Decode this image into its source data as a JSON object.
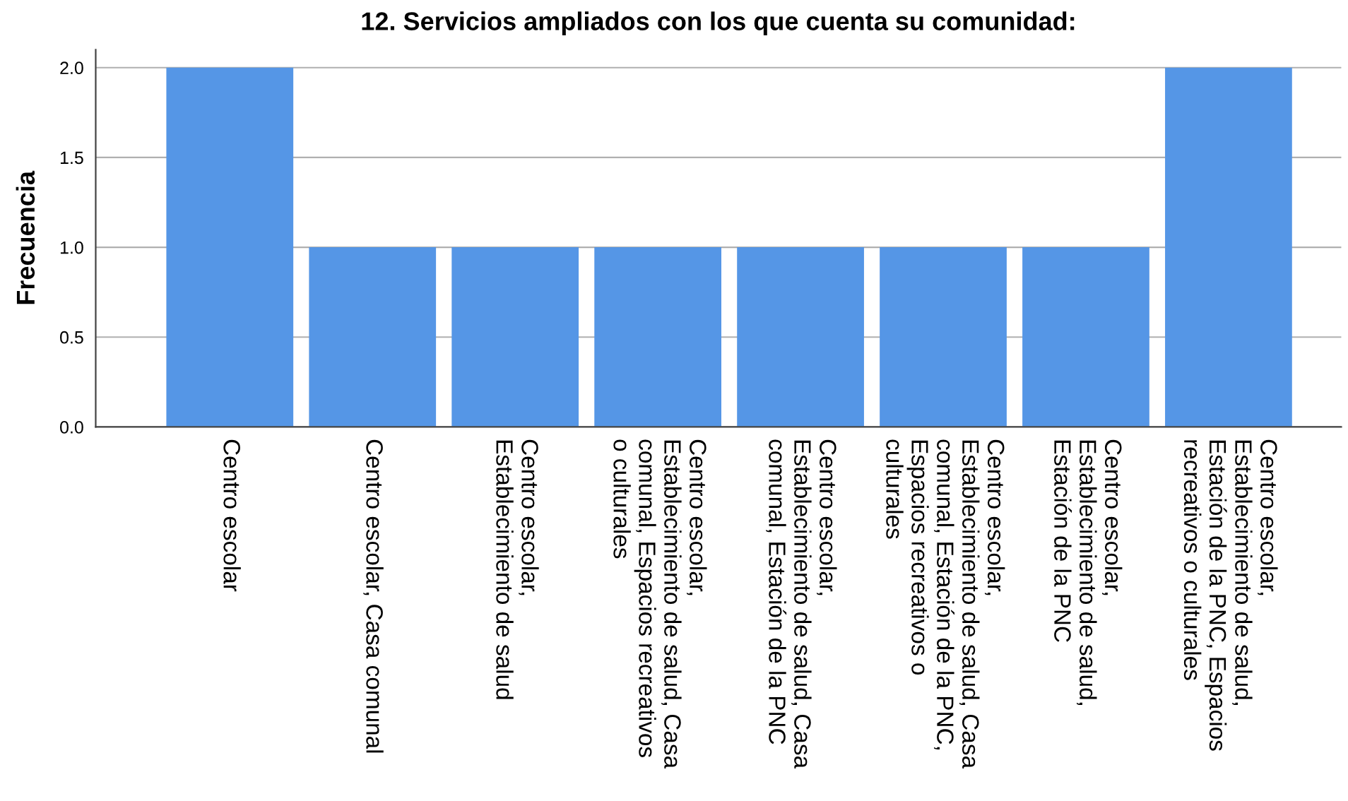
{
  "chart_data": {
    "type": "bar",
    "title": "12. Servicios ampliados con los que cuenta su comunidad:",
    "ylabel": "Frecuencia",
    "categories": [
      "Centro escolar",
      "Centro escolar, Casa comunal",
      "Centro escolar,\nEstablecimiento de salud",
      "Centro escolar,\nEstablecimiento de salud, Casa\ncomunal, Espacios recreativos\no culturales",
      "Centro escolar,\nEstablecimiento de salud, Casa\ncomunal, Estación de la PNC",
      "Centro escolar,\nEstablecimiento de salud, Casa\ncomunal, Estación de la PNC,\nEspacios recreativos o\nculturales",
      "Centro escolar,\nEstablecimiento de salud,\nEstación de la PNC",
      "Centro escolar,\nEstablecimiento de salud,\nEstación de la PNC, Espacios\nrecreativos o culturales"
    ],
    "values": [
      2,
      1,
      1,
      1,
      1,
      1,
      1,
      2
    ],
    "color": "#5596e6",
    "ylim": [
      0,
      2.1
    ],
    "yticks": [
      {
        "value": 0,
        "label": "0.0"
      },
      {
        "value": 0.5,
        "label": "0.5"
      },
      {
        "value": 1,
        "label": "1.0"
      },
      {
        "value": 1.5,
        "label": "1.5"
      },
      {
        "value": 2,
        "label": "2.0"
      }
    ],
    "grid": "y"
  }
}
